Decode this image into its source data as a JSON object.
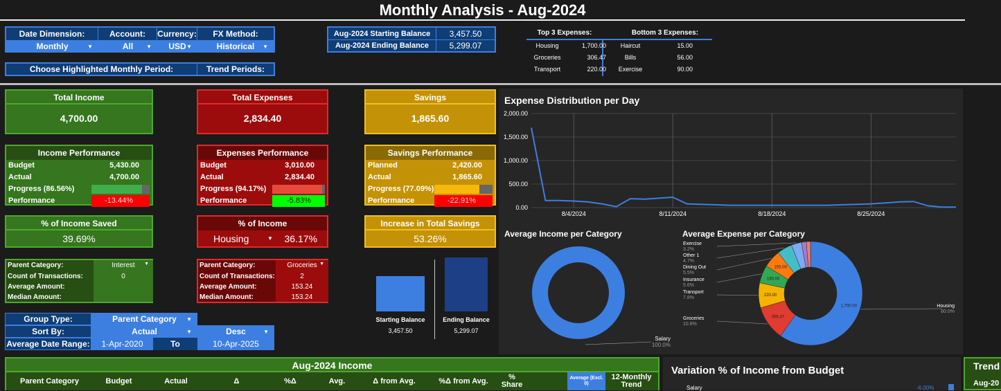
{
  "title": "Monthly Analysis - Aug-2024",
  "controls": {
    "date_dimension_label": "Date Dimension:",
    "date_dimension_value": "Monthly",
    "account_label": "Account:",
    "account_value": "All",
    "currency_label": "Currency:",
    "currency_value": "USD",
    "fx_label": "FX Method:",
    "fx_value": "Historical",
    "highlight_label": "Choose Highlighted Monthly Period:",
    "trend_label": "Trend Periods:"
  },
  "balances": {
    "start_label": "Aug-2024 Starting Balance",
    "start_value": "3,457.50",
    "end_label": "Aug-2024 Ending Balance",
    "end_value": "5,299.07"
  },
  "top3": {
    "title": "Top 3 Expenses:",
    "items": [
      {
        "name": "Housing",
        "value": "1,700.00"
      },
      {
        "name": "Groceries",
        "value": "306.47"
      },
      {
        "name": "Transport",
        "value": "220.00"
      }
    ]
  },
  "bottom3": {
    "title": "Bottom 3 Expenses:",
    "items": [
      {
        "name": "Haircut",
        "value": "15.00"
      },
      {
        "name": "Bills",
        "value": "56.00"
      },
      {
        "name": "Exercise",
        "value": "90.00"
      }
    ]
  },
  "income": {
    "title": "Total Income",
    "value": "4,700.00",
    "perf_title": "Income Performance",
    "budget_label": "Budget",
    "budget": "5,430.00",
    "actual_label": "Actual",
    "actual": "4,700.00",
    "progress_label": "Progress (86.56%)",
    "progress": 0.8656,
    "performance_label": "Performance",
    "performance": "-13.44%",
    "saved_title": "% of Income Saved",
    "saved": "39.69%",
    "parent_label": "Parent Category:",
    "parent_value": "Interest",
    "count_label": "Count of Transactions:",
    "count": "0",
    "avg_label": "Average Amount:",
    "avg": "",
    "median_label": "Median Amount:",
    "median": ""
  },
  "expenses": {
    "title": "Total Expenses",
    "value": "2,834.40",
    "perf_title": "Expenses Performance",
    "budget_label": "Budget",
    "budget": "3,010.00",
    "actual_label": "Actual",
    "actual": "2,834.40",
    "progress_label": "Progress (94.17%)",
    "progress": 0.9417,
    "performance_label": "Performance",
    "performance": "-5.83%",
    "pct_title": "% of Income",
    "pct_category": "Housing",
    "pct_value": "36.17%",
    "parent_label": "Parent Category:",
    "parent_value": "Groceries",
    "count_label": "Count of Transactions:",
    "count": "2",
    "avg_label": "Average Amount:",
    "avg": "153.24",
    "median_label": "Median Amount:",
    "median": "153.24"
  },
  "savings": {
    "title": "Savings",
    "value": "1,865.60",
    "perf_title": "Savings Performance",
    "planned_label": "Planned",
    "planned": "2,420.00",
    "actual_label": "Actual",
    "actual": "1,865.60",
    "progress_label": "Progress (77.09%)",
    "progress": 0.7709,
    "performance_label": "Performance",
    "performance": "-22.91%",
    "increase_title": "Increase in Total Savings",
    "increase": "53.26%"
  },
  "balance_bars": {
    "start_label": "Starting Balance",
    "start_value": "3,457.50",
    "end_label": "Ending Balance",
    "end_value": "5,299.07",
    "start": 3457.5,
    "end": 5299.07
  },
  "group": {
    "group_label": "Group Type:",
    "group_value": "Parent Category",
    "sort_label": "Sort By:",
    "sort_value": "Actual",
    "order_value": "Desc",
    "range_label": "Average Date Range:",
    "from": "1-Apr-2020",
    "to_label": "To",
    "to": "10-Apr-2025"
  },
  "table": {
    "title": "Aug-2024 Income",
    "columns": [
      "Parent Category",
      "Budget",
      "Actual",
      "Δ",
      "%Δ",
      "Avg.",
      "Δ from Avg.",
      "%Δ from Avg.",
      "% Share",
      "% Saved",
      "12-Monthly Trend"
    ],
    "avg_select": "Average (Excl. 0)"
  },
  "variation": {
    "title": "Variation % of Income from Budget",
    "category": "Salary",
    "value": "-6.00%"
  },
  "trend_stub": {
    "title": "Trend",
    "label": "Aug-20"
  },
  "chart_data": [
    {
      "type": "line",
      "title": "Expense Distribution per Day",
      "x_ticks": [
        "8/4/2024",
        "8/11/2024",
        "8/18/2024",
        "8/25/2024"
      ],
      "y_ticks": [
        "2,000.00",
        "1,500.00",
        "1,000.00",
        "500.00",
        "0.00"
      ],
      "ylim": [
        0,
        2000
      ],
      "x": [
        1,
        2,
        3,
        4,
        5,
        6,
        7,
        8,
        9,
        10,
        11,
        12,
        13,
        14,
        15,
        16,
        17,
        18,
        19,
        20,
        21,
        22,
        23,
        24,
        25,
        26,
        27,
        28,
        29,
        30,
        31
      ],
      "y": [
        1700,
        150,
        150,
        140,
        120,
        80,
        20,
        190,
        180,
        200,
        220,
        80,
        70,
        60,
        50,
        50,
        50,
        50,
        50,
        50,
        50,
        50,
        60,
        70,
        80,
        100,
        120,
        130,
        40,
        10,
        10
      ],
      "grid": true
    },
    {
      "type": "pie",
      "title": "Average Income per Category",
      "labels": [
        "Salary"
      ],
      "values": [
        100
      ],
      "label_values": [
        "100.0%"
      ]
    },
    {
      "type": "pie",
      "title": "Average Expense per Category",
      "labels": [
        "Housing",
        "Groceries",
        "Transport",
        "Insurance",
        "Dining Out",
        "Other 1",
        "Exercise"
      ],
      "values": [
        60.0,
        10.8,
        7.8,
        5.6,
        5.5,
        4.7,
        3.2
      ],
      "slice_labels": [
        "1,700.00",
        "306.47",
        "220.00",
        "160.00",
        "155.00",
        "",
        ""
      ],
      "label_values": [
        "60.0%",
        "10.8%",
        "7.8%",
        "5.6%",
        "5.5%",
        "4.7%",
        "3.2%"
      ]
    }
  ]
}
